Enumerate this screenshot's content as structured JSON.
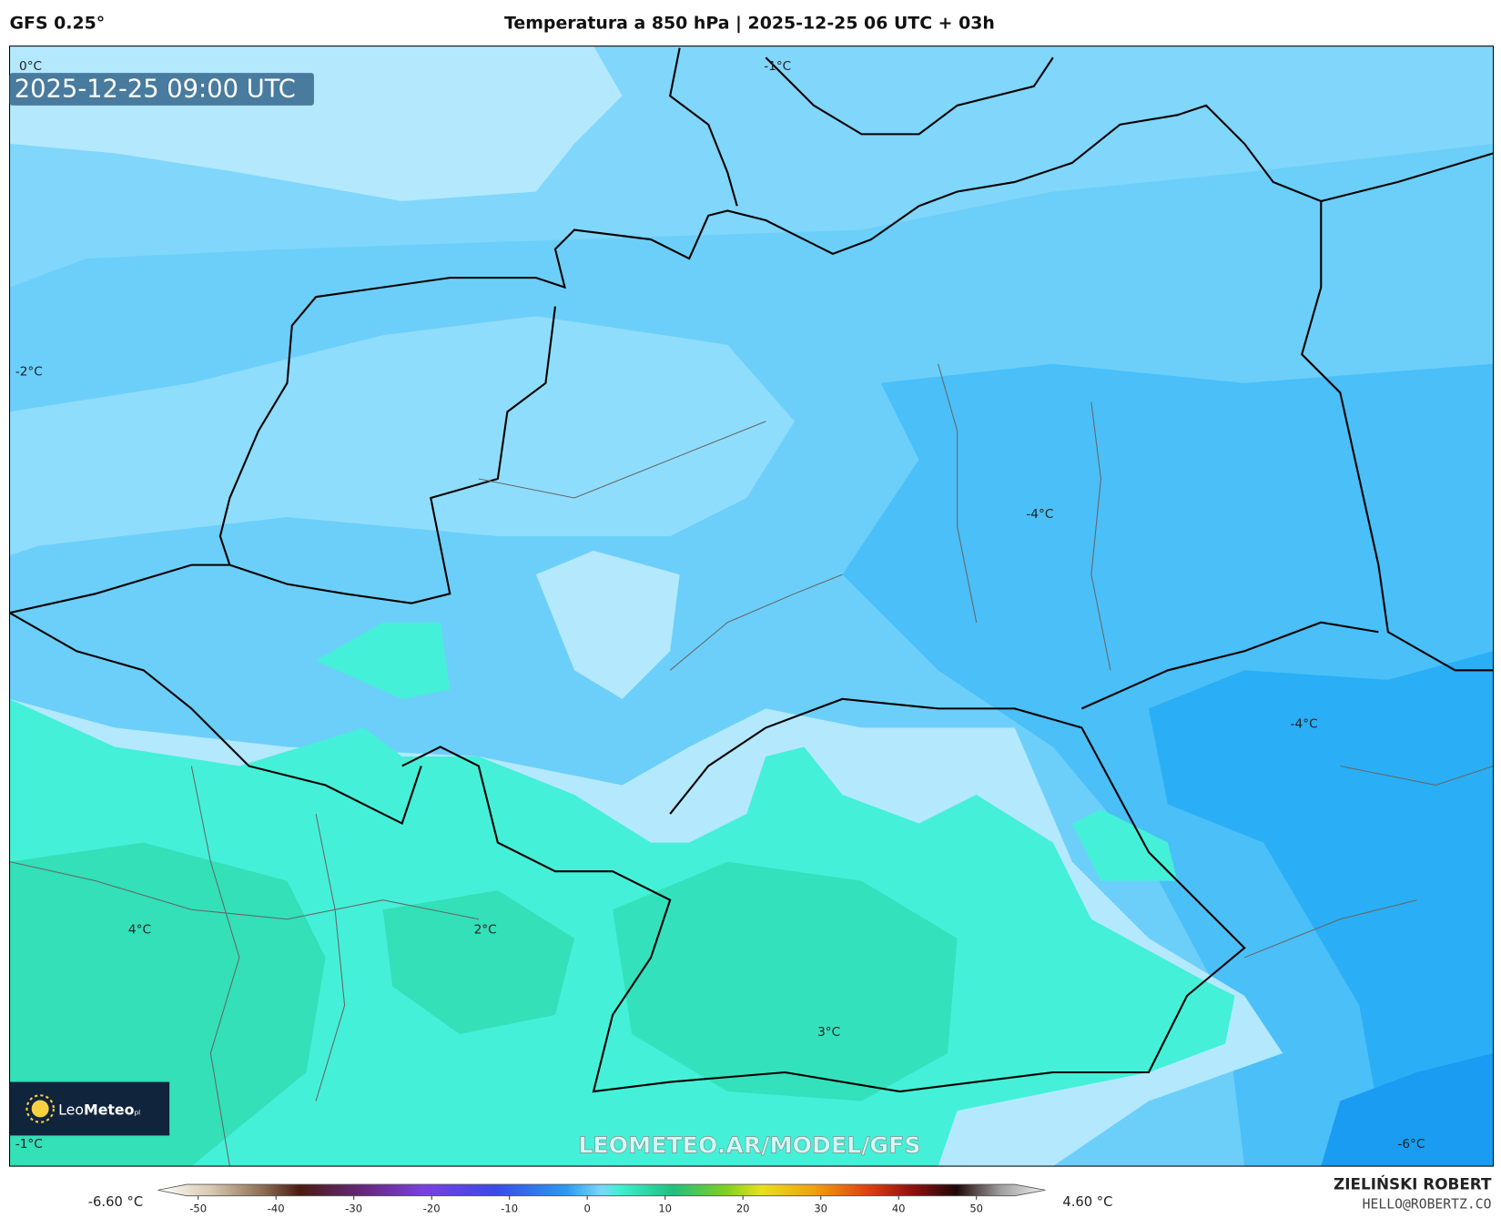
{
  "header": {
    "model": "GFS 0.25°",
    "title": "Temperatura a 850 hPa | 2025-12-25 06 UTC + 03h"
  },
  "map": {
    "timestamp": "2025-12-25 09:00 UTC",
    "contour_labels": [
      "0°C",
      "-1°C",
      "-2°C",
      "-4°C",
      "-4°C",
      "2°C",
      "4°C",
      "3°C",
      "-1°C",
      "-6°C"
    ],
    "logo": {
      "light": "Leo",
      "bold": "Meteo",
      "suffix": "pl"
    },
    "watermark": "LEOMETEO.AR/MODEL/GFS"
  },
  "colorbar": {
    "min_label": "-6.60 °C",
    "max_label": "4.60 °C",
    "ticks": [
      -50,
      -40,
      -30,
      -20,
      -10,
      0,
      10,
      20,
      30,
      40,
      50
    ]
  },
  "footer": {
    "author": "ZIELIŃSKI ROBERT",
    "email": "HELLO@ROBERTZ.CO"
  }
}
